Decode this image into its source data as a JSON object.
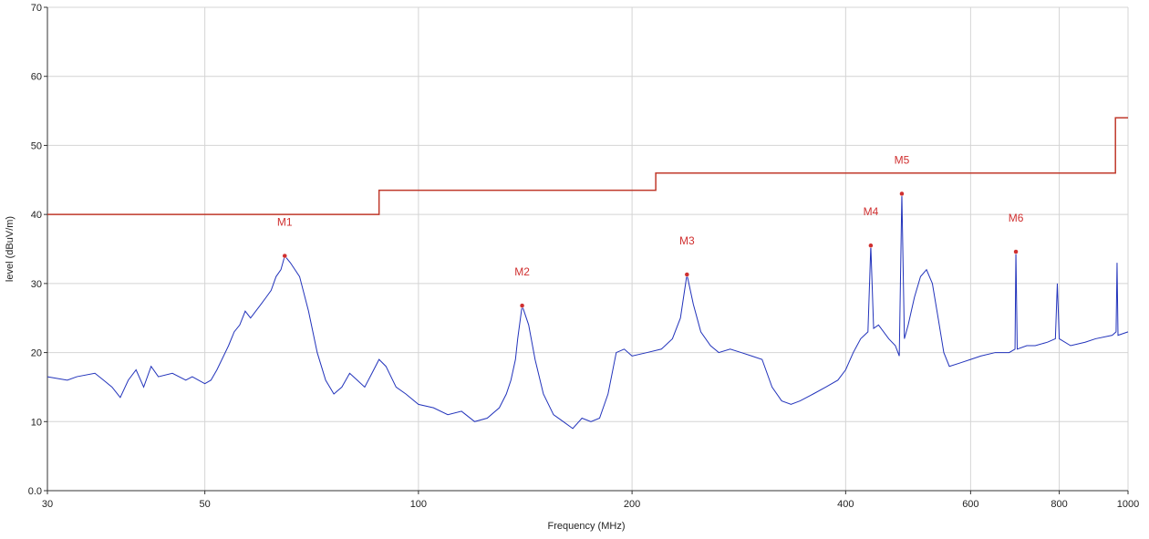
{
  "chart_data": {
    "type": "line",
    "xlabel": "Frequency (MHz)",
    "ylabel": "level (dBuV/m)",
    "xlog": true,
    "grid": true,
    "xlim": [
      30,
      1000
    ],
    "ylim": [
      0,
      70
    ],
    "xticks": [
      30,
      50,
      100,
      200,
      400,
      600,
      800,
      1000
    ],
    "yticks": [
      {
        "value": 0,
        "label": "0.0"
      },
      10,
      20,
      30,
      40,
      50,
      60,
      70
    ],
    "series": [
      {
        "color": "#c0392b",
        "step": true,
        "x": [
          30,
          88,
          88,
          216,
          216,
          960,
          960,
          1000
        ],
        "values": [
          40,
          40,
          43.5,
          43.5,
          46,
          46,
          54,
          54
        ]
      },
      {
        "color": "#2233bb",
        "x": [
          30,
          32,
          33,
          35,
          36,
          37,
          38,
          39,
          40,
          41,
          42,
          43,
          45,
          47,
          48,
          50,
          51,
          52,
          54,
          55,
          56,
          57,
          58,
          60,
          61,
          62,
          63,
          64,
          64.8,
          66,
          68,
          70,
          72,
          74,
          76,
          78,
          80,
          82,
          84,
          86,
          88,
          90,
          93,
          96,
          100,
          105,
          110,
          115,
          120,
          125,
          130,
          133,
          135,
          137,
          138,
          140,
          143,
          146,
          150,
          155,
          160,
          165,
          170,
          175,
          180,
          185,
          190,
          195,
          200,
          210,
          220,
          228,
          234,
          239,
          244,
          250,
          258,
          265,
          275,
          285,
          295,
          305,
          315,
          325,
          335,
          345,
          360,
          375,
          390,
          400,
          410,
          420,
          430,
          434,
          438,
          445,
          460,
          470,
          476,
          480,
          484,
          490,
          500,
          510,
          520,
          530,
          540,
          550,
          560,
          580,
          600,
          620,
          650,
          680,
          693,
          695,
          698,
          720,
          740,
          770,
          790,
          795,
          800,
          830,
          870,
          900,
          950,
          962,
          965,
          968,
          1000
        ],
        "values": [
          16.5,
          16,
          16.5,
          17,
          16,
          15,
          13.5,
          16,
          17.5,
          15,
          18,
          16.5,
          17,
          16,
          16.5,
          15.5,
          16,
          17.5,
          21,
          23,
          24,
          26,
          25,
          27,
          28,
          29,
          31,
          32,
          34,
          33,
          31,
          26,
          20,
          16,
          14,
          15,
          17,
          16,
          15,
          17,
          19,
          18,
          15,
          14,
          12.5,
          12,
          11,
          11.5,
          10,
          10.5,
          12,
          14,
          16,
          19,
          22,
          26.8,
          24,
          19,
          14,
          11,
          10,
          9,
          10.5,
          10,
          10.5,
          14,
          20,
          20.5,
          19.5,
          20,
          20.5,
          22,
          25,
          31.3,
          27,
          23,
          21,
          20,
          20.5,
          20,
          19.5,
          19,
          15,
          13,
          12.5,
          13,
          14,
          15,
          16,
          17.5,
          20,
          22,
          23,
          35.5,
          23.5,
          24,
          22,
          21,
          19.5,
          43,
          22,
          24,
          28,
          31,
          32,
          30,
          25,
          20,
          18,
          18.5,
          19,
          19.5,
          20,
          20,
          20.5,
          34.6,
          20.5,
          21,
          21,
          21.5,
          22,
          30,
          22,
          21,
          21.5,
          22,
          22.5,
          23,
          33,
          22.5,
          23
        ]
      }
    ],
    "markers": [
      {
        "label": "M1",
        "x": 64.8,
        "value": 34
      },
      {
        "label": "M2",
        "x": 140,
        "value": 26.8
      },
      {
        "label": "M3",
        "x": 239,
        "value": 31.3
      },
      {
        "label": "M4",
        "x": 434,
        "value": 35.5
      },
      {
        "label": "M5",
        "x": 480,
        "value": 43
      },
      {
        "label": "M6",
        "x": 695,
        "value": 34.6
      }
    ],
    "marker_color": "#d03030"
  }
}
